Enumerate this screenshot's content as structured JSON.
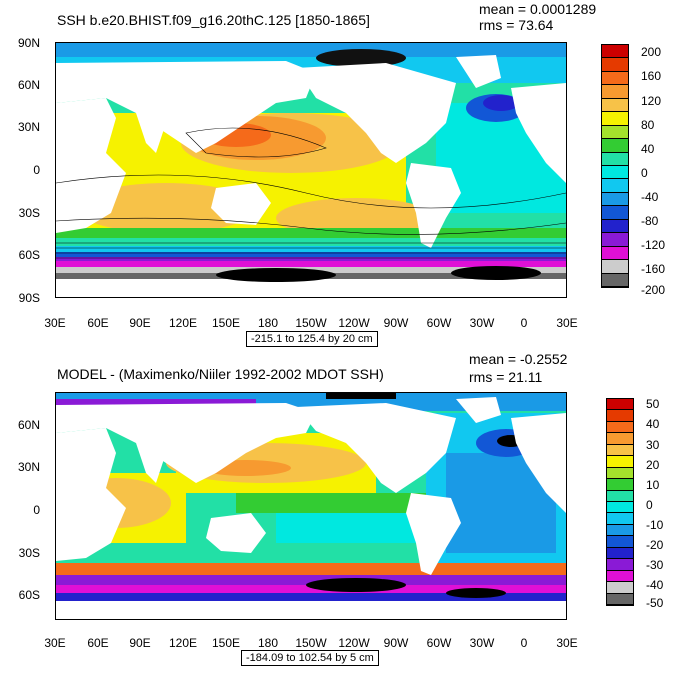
{
  "panels": [
    {
      "title": "SSH b.e20.BHIST.f09_g16.20thC.125 [1850-1865]",
      "mean": "mean = 0.0001289",
      "rms": "rms = 73.64",
      "y_ticks": [
        "90N",
        "60N",
        "30N",
        "0",
        "30S",
        "60S",
        "90S"
      ],
      "x_ticks": [
        "30E",
        "60E",
        "90E",
        "120E",
        "150E",
        "180",
        "150W",
        "120W",
        "90W",
        "60W",
        "30W",
        "0",
        "30E"
      ],
      "contour_info": "-215.1 to 125.4 by 20 cm",
      "colorbar_labels": [
        "200",
        "160",
        "120",
        "80",
        "40",
        "0",
        "-40",
        "-80",
        "-120",
        "-160",
        "-200"
      ],
      "colorbar_colors": [
        "#cc0000",
        "#e53a00",
        "#f56a1a",
        "#f79a30",
        "#f7c248",
        "#f6f200",
        "#a4e22c",
        "#33cc33",
        "#22e0a6",
        "#00e8e0",
        "#11c8f0",
        "#1a9ae6",
        "#1257d6",
        "#2222cc",
        "#8a1ad6",
        "#e010d6",
        "#cccccc",
        "#666666"
      ]
    },
    {
      "title": "MODEL - (Maximenko/Niiler 1992-2002 MDOT SSH)",
      "mean": "mean = -0.2552",
      "rms": "rms = 21.11",
      "y_ticks": [
        "60N",
        "30N",
        "0",
        "30S",
        "60S"
      ],
      "x_ticks": [
        "30E",
        "60E",
        "90E",
        "120E",
        "150E",
        "180",
        "150W",
        "120W",
        "90W",
        "60W",
        "30W",
        "0",
        "30E"
      ],
      "contour_info": "-184.09 to 102.54 by 5 cm",
      "colorbar_labels": [
        "50",
        "40",
        "30",
        "20",
        "10",
        "0",
        "-10",
        "-20",
        "-30",
        "-40",
        "-50"
      ],
      "colorbar_colors": [
        "#cc0000",
        "#e53a00",
        "#f56a1a",
        "#f79a30",
        "#f7c248",
        "#f6f200",
        "#a4e22c",
        "#33cc33",
        "#22e0a6",
        "#00e8e0",
        "#11c8f0",
        "#1a9ae6",
        "#1257d6",
        "#2222cc",
        "#8a1ad6",
        "#e010d6",
        "#cccccc",
        "#666666"
      ]
    }
  ]
}
